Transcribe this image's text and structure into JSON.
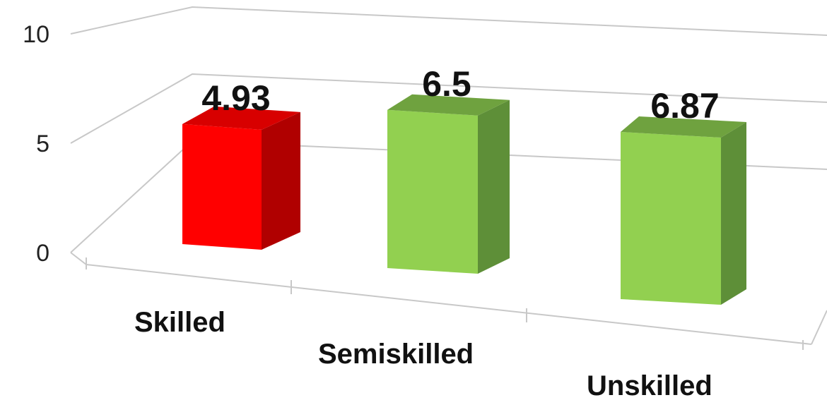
{
  "chart_data": {
    "type": "bar",
    "categories": [
      "Skilled",
      "Semiskilled",
      "Unskilled"
    ],
    "values": [
      4.93,
      6.5,
      6.87
    ],
    "value_labels": [
      "4.93",
      "6.5",
      "6.87"
    ],
    "ylim": [
      0,
      10
    ],
    "yticks": [
      0,
      5,
      10
    ],
    "ytick_labels": [
      "0",
      "5",
      "10"
    ],
    "grid": true,
    "style": "3d-column",
    "colors": {
      "Skilled": {
        "front": "#ff0000",
        "side": "#b00000",
        "top": "#d80000"
      },
      "Semiskilled": {
        "front": "#92d050",
        "side": "#5e8f38",
        "top": "#6fa23f"
      },
      "Unskilled": {
        "front": "#92d050",
        "side": "#5e8f38",
        "top": "#6fa23f"
      }
    }
  }
}
